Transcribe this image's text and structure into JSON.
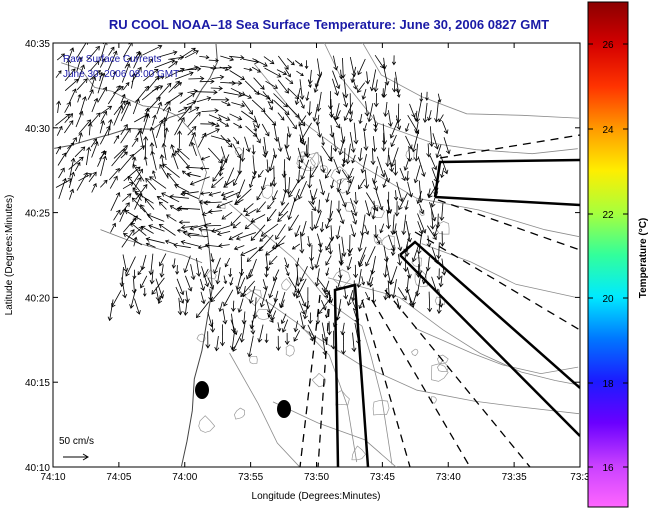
{
  "chart_data": {
    "type": "map",
    "title": "RU COOL  NOAA–18  Sea Surface Temperature:  June 30, 2006 0827 GMT",
    "xlabel": "Longitude (Degrees:Minutes)",
    "ylabel": "Latitude (Degrees:Minutes)",
    "x_ticks": [
      "74:10",
      "74:05",
      "74:00",
      "73:55",
      "73:50",
      "73:45",
      "73:40",
      "73:35",
      "73:3"
    ],
    "y_ticks": [
      "40:35",
      "40:30",
      "40:25",
      "40:20",
      "40:15",
      "40:10"
    ],
    "annotation_lines": [
      "Raw Surface Currents",
      "June 30, 2006 08:00 GMT"
    ],
    "scale_label": "50 cm/s",
    "colorbar": {
      "label": "Temperature (°C)",
      "ticks": [
        "26",
        "24",
        "22",
        "20",
        "18",
        "16"
      ],
      "colors": [
        "#8b0000",
        "#d40000",
        "#ff3300",
        "#ff9900",
        "#ffee00",
        "#a8ff3c",
        "#33ff9a",
        "#00eaff",
        "#0077ff",
        "#1b1bff",
        "#6a00ff",
        "#c840ff",
        "#ff66ff"
      ]
    },
    "grid": false,
    "legend": "none"
  }
}
